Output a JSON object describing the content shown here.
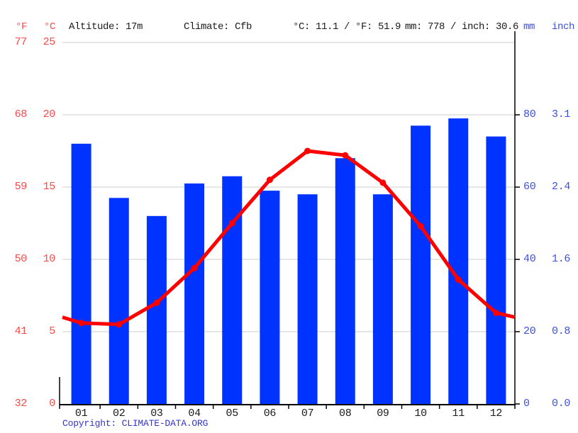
{
  "header": {
    "left_unit_f": "°F",
    "left_unit_c": "°C",
    "altitude": "Altitude: 17m",
    "climate": "Climate: Cfb",
    "temperature_summary": "°C: 11.1 / °F: 51.9",
    "precipitation_summary": "mm: 778 / inch: 30.6",
    "right_unit_mm": "mm",
    "right_unit_inch": "inch"
  },
  "footer": {
    "copyright": "Copyright: CLIMATE-DATA.ORG"
  },
  "chart_data": {
    "type": "bar",
    "months": [
      "01",
      "02",
      "03",
      "04",
      "05",
      "06",
      "07",
      "08",
      "09",
      "10",
      "11",
      "12"
    ],
    "series": [
      {
        "name": "precipitation",
        "type": "bar",
        "unit": "mm",
        "values": [
          72,
          57,
          52,
          61,
          63,
          59,
          58,
          68,
          58,
          77,
          79,
          74
        ]
      },
      {
        "name": "temperature",
        "type": "line",
        "unit": "°C",
        "values": [
          5.6,
          5.5,
          7.0,
          9.4,
          12.5,
          15.5,
          17.5,
          17.2,
          15.3,
          12.3,
          8.6,
          6.3
        ],
        "edge_values": [
          6.0,
          6.0
        ]
      }
    ],
    "axes": {
      "left_fahrenheit_ticks": [
        77,
        68,
        59,
        50,
        41,
        32
      ],
      "left_celsius_ticks": [
        25,
        20,
        15,
        10,
        5,
        0
      ],
      "right_mm_ticks": [
        80,
        60,
        40,
        20,
        0
      ],
      "right_inch_ticks": [
        "3.1",
        "2.4",
        "1.6",
        "0.8",
        "0.0"
      ],
      "celsius_range": [
        0,
        25
      ],
      "mm_range": [
        0,
        100
      ]
    },
    "grid": true,
    "legend": "none"
  },
  "colors": {
    "bar_blue": "#0033ff",
    "line_red": "#ff0000",
    "red_label": "#ff4747",
    "blue_label": "#3c50e0",
    "copyright_blue": "#3434d0",
    "grid_gray": "#cccccc",
    "axis_black": "#000000",
    "text_black": "#1a1a1a"
  }
}
